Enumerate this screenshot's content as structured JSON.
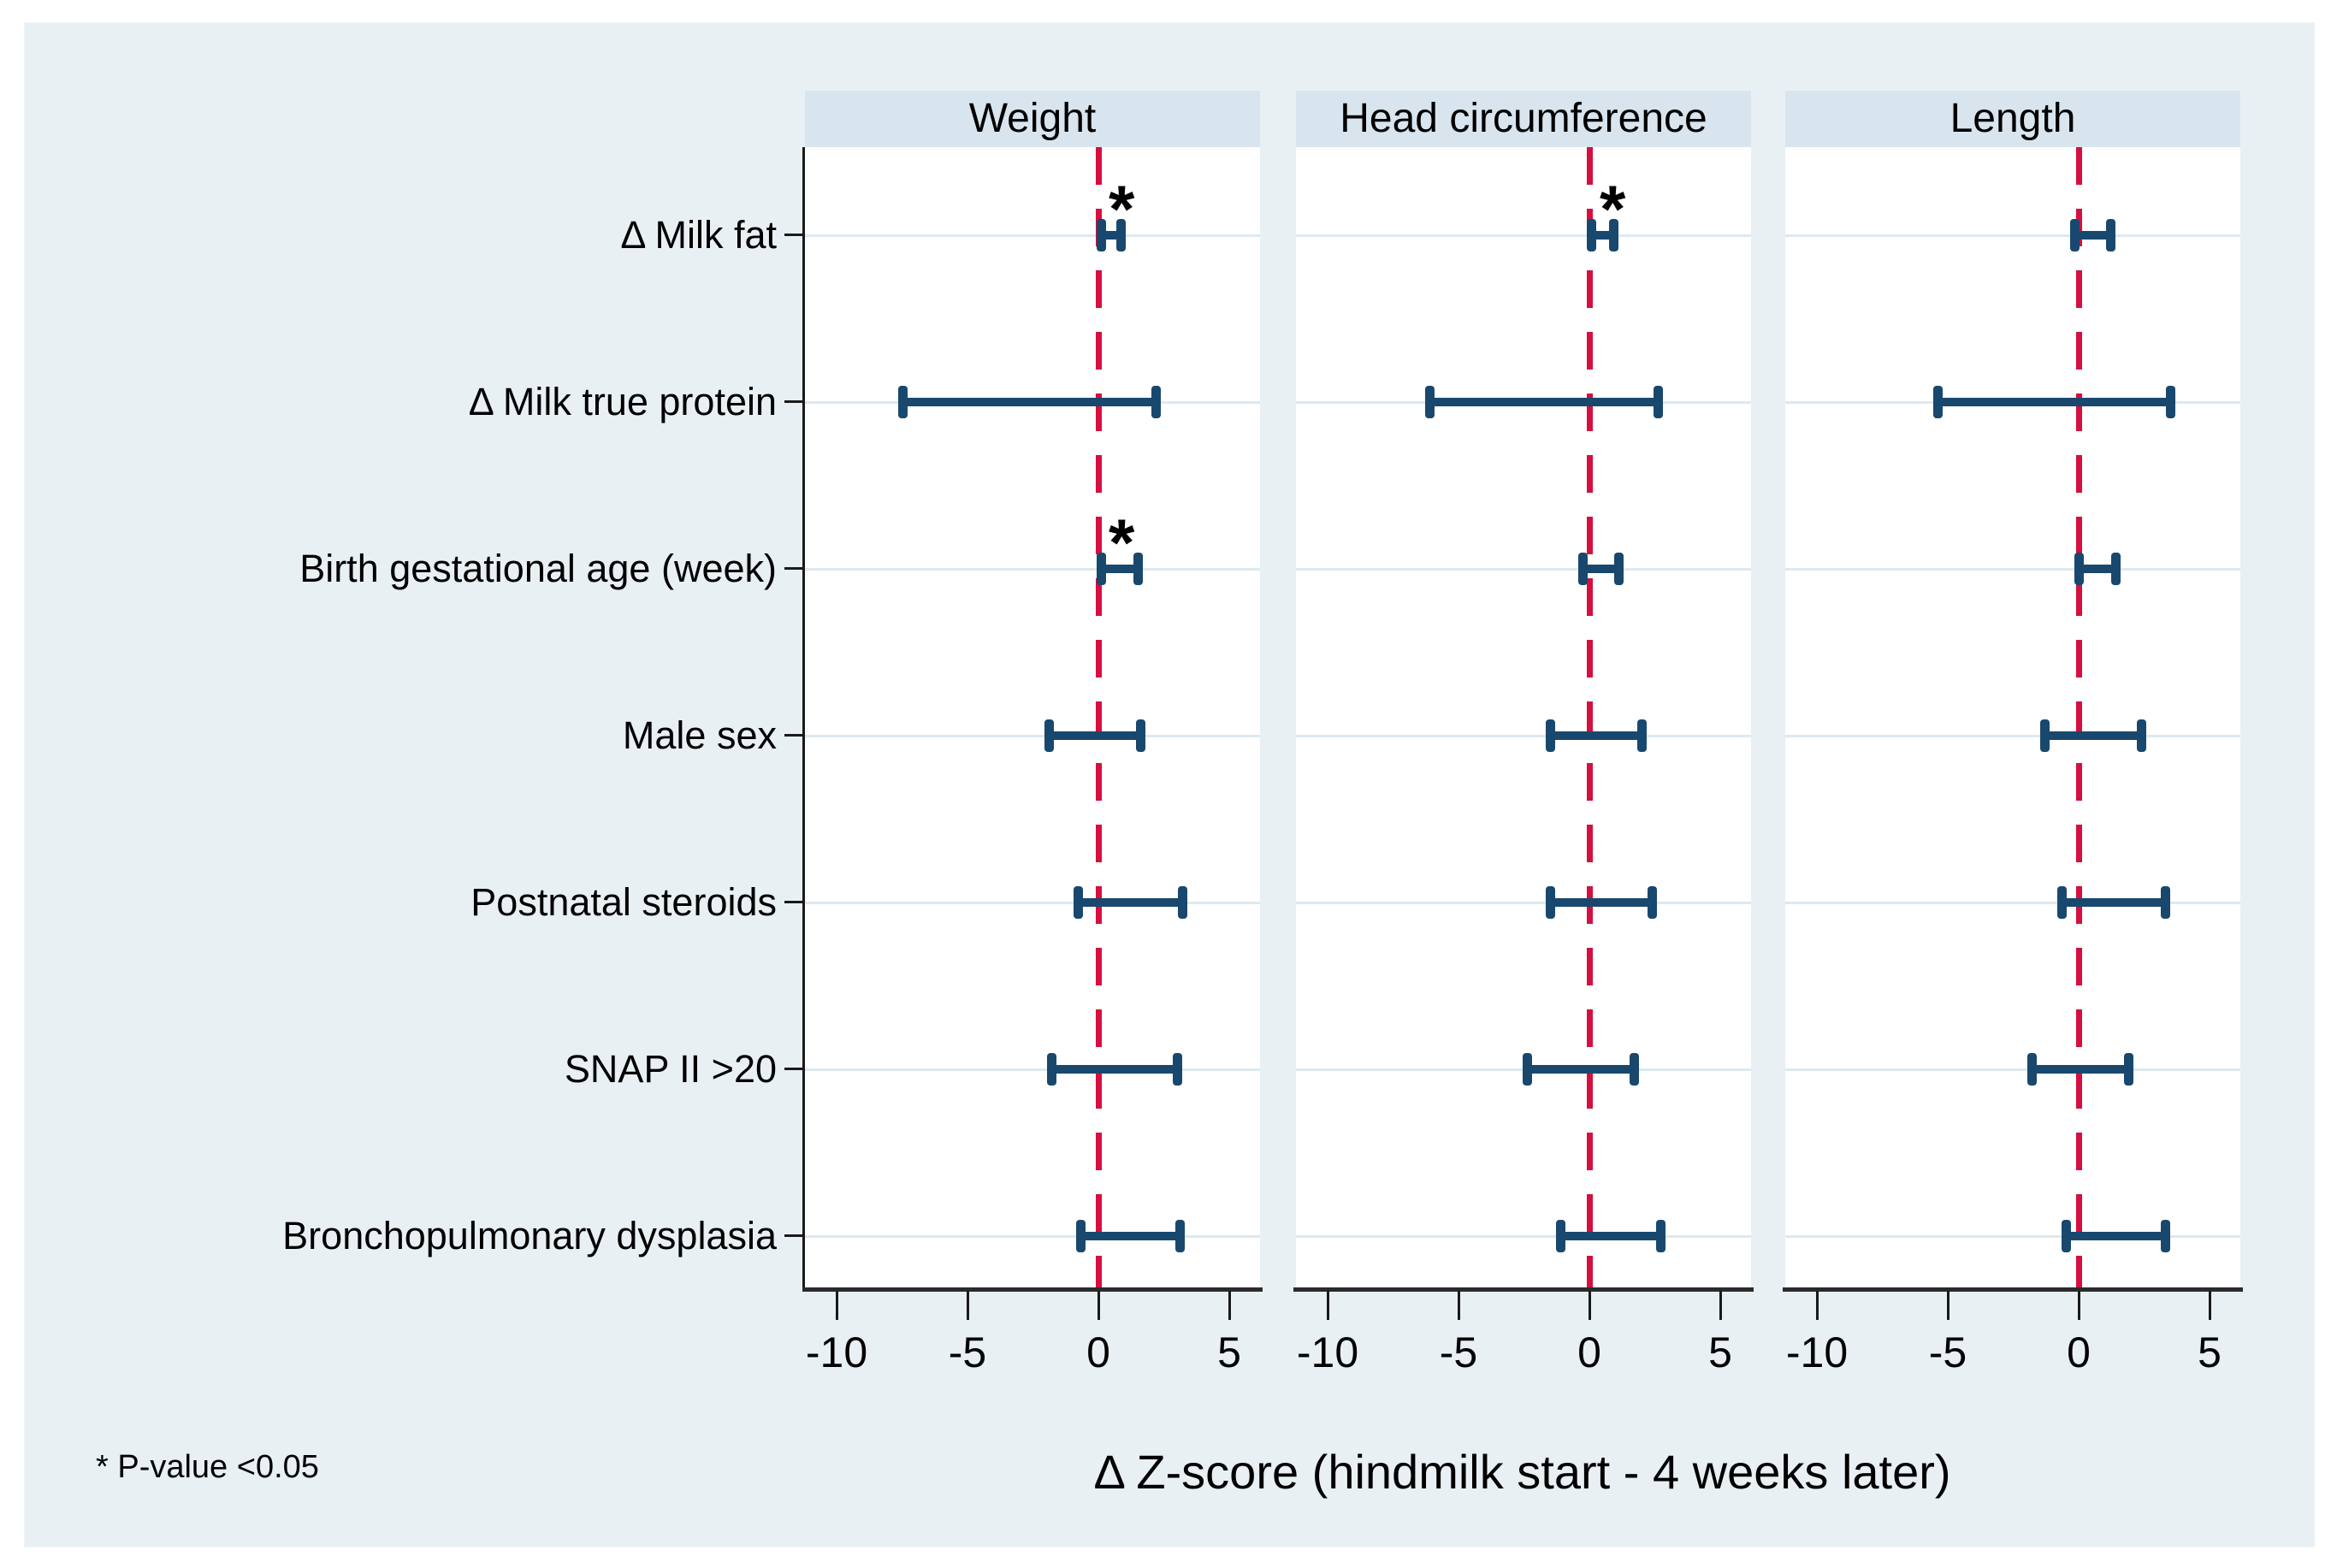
{
  "figure": {
    "xaxis_title": "Δ Z-score (hindmilk start - 4 weeks later)",
    "footnote": "* P-value <0.05"
  },
  "chart_data": {
    "type": "forest",
    "xlabel": "Δ Z-score (hindmilk start - 4 weeks later)",
    "footnote": "* P-value <0.05",
    "sig_marker": "*",
    "x_ticks": [
      -10,
      -5,
      0,
      5
    ],
    "x_range": [
      -11.2,
      6.2
    ],
    "reference_line": 0,
    "grid": true,
    "rows": [
      "Δ Milk fat",
      "Δ Milk true protein",
      "Birth gestational age (week)",
      "Male sex",
      "Postnatal steroids",
      "SNAP II >20",
      "Bronchopulmonary dysplasia"
    ],
    "panels": [
      {
        "title": "Weight",
        "intervals": [
          {
            "lo": 0.1,
            "hi": 0.85,
            "sig": true
          },
          {
            "lo": -7.5,
            "hi": 2.2,
            "sig": false
          },
          {
            "lo": 0.1,
            "hi": 1.5,
            "sig": true
          },
          {
            "lo": -1.9,
            "hi": 1.6,
            "sig": false
          },
          {
            "lo": -0.8,
            "hi": 3.2,
            "sig": false
          },
          {
            "lo": -1.8,
            "hi": 3.0,
            "sig": false
          },
          {
            "lo": -0.7,
            "hi": 3.1,
            "sig": false
          }
        ]
      },
      {
        "title": "Head circumference",
        "intervals": [
          {
            "lo": 0.05,
            "hi": 0.9,
            "sig": true
          },
          {
            "lo": -6.1,
            "hi": 2.6,
            "sig": false
          },
          {
            "lo": -0.25,
            "hi": 1.1,
            "sig": false
          },
          {
            "lo": -1.5,
            "hi": 2.0,
            "sig": false
          },
          {
            "lo": -1.5,
            "hi": 2.4,
            "sig": false
          },
          {
            "lo": -2.4,
            "hi": 1.7,
            "sig": false
          },
          {
            "lo": -1.1,
            "hi": 2.7,
            "sig": false
          }
        ]
      },
      {
        "title": "Length",
        "intervals": [
          {
            "lo": -0.15,
            "hi": 1.2,
            "sig": false
          },
          {
            "lo": -5.4,
            "hi": 3.5,
            "sig": false
          },
          {
            "lo": 0.0,
            "hi": 1.4,
            "sig": false
          },
          {
            "lo": -1.3,
            "hi": 2.4,
            "sig": false
          },
          {
            "lo": -0.65,
            "hi": 3.3,
            "sig": false
          },
          {
            "lo": -1.8,
            "hi": 1.9,
            "sig": false
          },
          {
            "lo": -0.5,
            "hi": 3.3,
            "sig": false
          }
        ]
      }
    ],
    "colors": {
      "interval": "#19486e",
      "reference_line": "#d50f3f",
      "panel_header_bg": "#d8e5ee",
      "figure_bg": "#e9f0f4",
      "gridline": "#dce9f0",
      "axis": "#1a1a1a"
    }
  }
}
